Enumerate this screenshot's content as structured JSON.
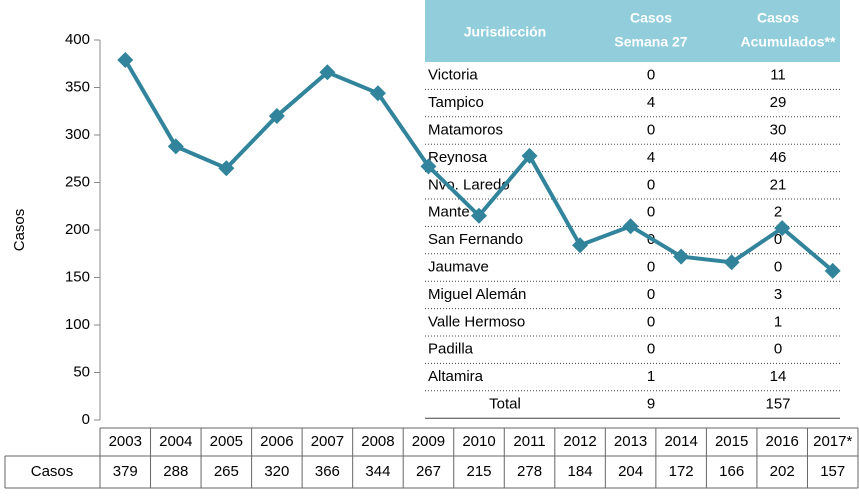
{
  "chart_data": {
    "type": "line",
    "y_label": "Casos",
    "categories": [
      "2003",
      "2004",
      "2005",
      "2006",
      "2007",
      "2008",
      "2009",
      "2010",
      "2011",
      "2012",
      "2013",
      "2014",
      "2015",
      "2016",
      "2017*"
    ],
    "series": [
      {
        "name": "Casos",
        "color": "#31849b",
        "values": [
          379,
          288,
          265,
          320,
          366,
          344,
          267,
          215,
          278,
          184,
          204,
          172,
          166,
          202,
          157
        ]
      }
    ],
    "ylim": [
      0,
      400
    ],
    "yticks": [
      0,
      50,
      100,
      150,
      200,
      250,
      300,
      350,
      400
    ]
  },
  "table": {
    "header": {
      "col1": "Jurisdicción",
      "col2": [
        "Casos",
        "Semana 27"
      ],
      "col3": [
        "Casos",
        "Acumulados**"
      ]
    },
    "rows": [
      [
        "Victoria",
        "0",
        "11"
      ],
      [
        "Tampico",
        "4",
        "29"
      ],
      [
        "Matamoros",
        "0",
        "30"
      ],
      [
        "Reynosa",
        "4",
        "46"
      ],
      [
        "Nvo. Laredo",
        "0",
        "21"
      ],
      [
        "Mante",
        "0",
        "2"
      ],
      [
        "San Fernando",
        "0",
        "0"
      ],
      [
        "Jaumave",
        "0",
        "0"
      ],
      [
        "Miguel Alemán",
        "0",
        "3"
      ],
      [
        "Valle Hermoso",
        "0",
        "1"
      ],
      [
        "Padilla",
        "0",
        "0"
      ],
      [
        "Altamira",
        "1",
        "14"
      ]
    ],
    "total": [
      "Total",
      "9",
      "157"
    ]
  }
}
